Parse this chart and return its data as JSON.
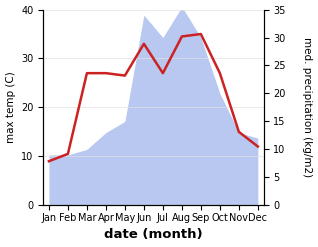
{
  "months": [
    "Jan",
    "Feb",
    "Mar",
    "Apr",
    "May",
    "Jun",
    "Jul",
    "Aug",
    "Sep",
    "Oct",
    "Nov",
    "Dec"
  ],
  "temp": [
    9.0,
    10.5,
    27.0,
    27.0,
    26.5,
    33.0,
    27.0,
    34.5,
    35.0,
    27.0,
    15.0,
    12.0
  ],
  "precip": [
    9.0,
    9.0,
    10.0,
    13.0,
    15.0,
    34.0,
    30.0,
    35.5,
    30.0,
    20.0,
    13.0,
    12.0
  ],
  "temp_ylim": [
    0,
    40
  ],
  "precip_ylim": [
    0,
    35
  ],
  "temp_color": "#cc2222",
  "precip_color": "#b8c8f0",
  "xlabel": "date (month)",
  "ylabel_left": "max temp (C)",
  "ylabel_right": "med. precipitation (kg/m2)",
  "bg_color": "#ffffff",
  "label_fontsize": 7.5,
  "tick_fontsize": 7.0,
  "xlabel_fontsize": 9.5,
  "linewidth": 1.8
}
